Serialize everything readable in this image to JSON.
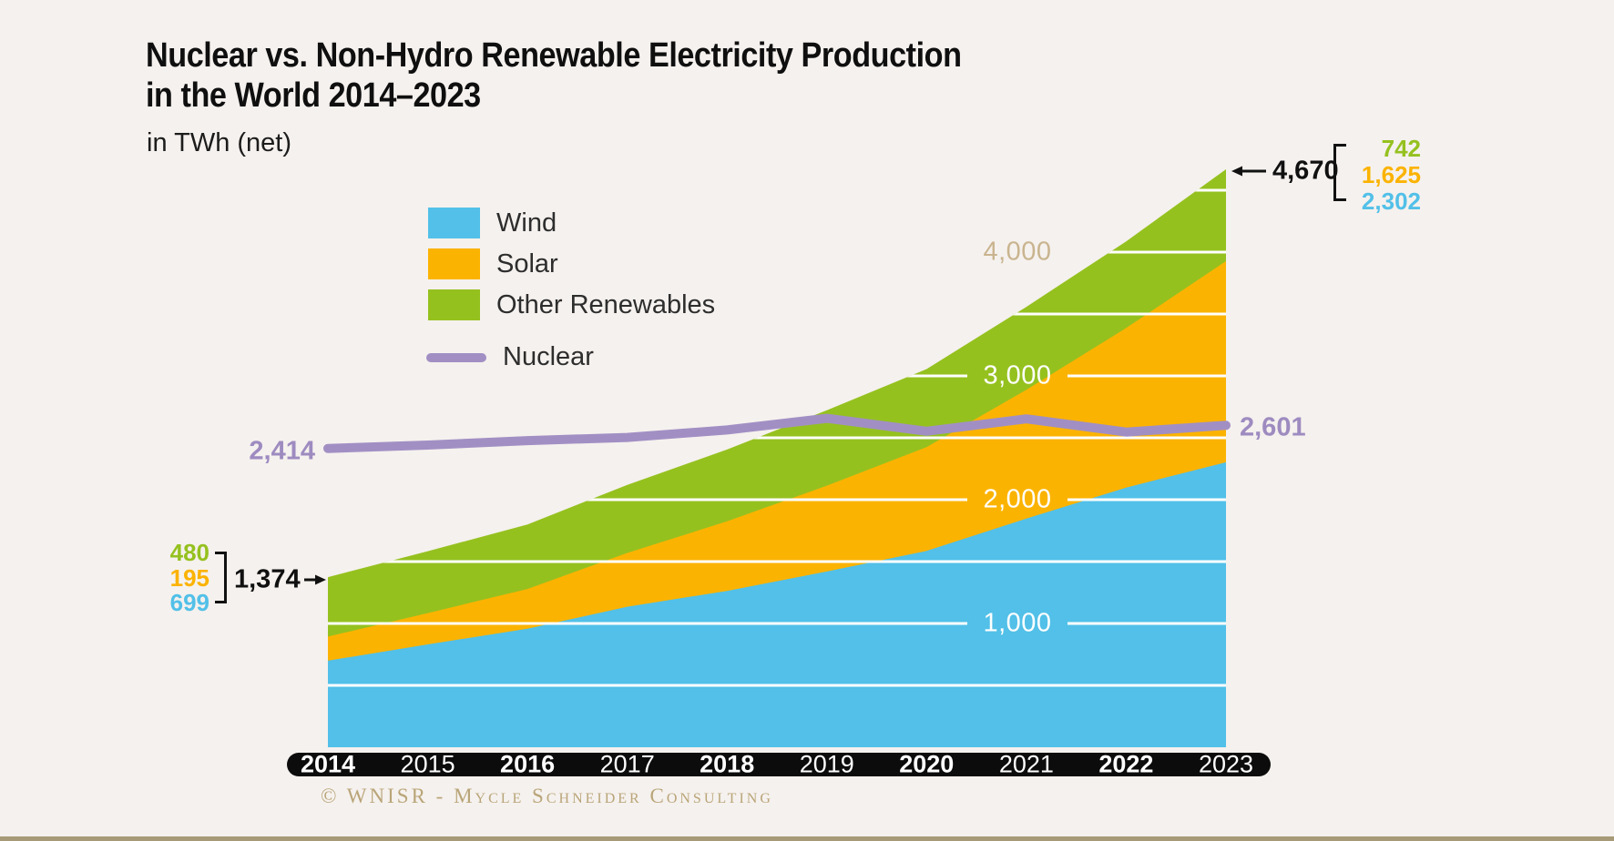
{
  "title": {
    "line1": "Nuclear vs. Non-Hydro Renewable Electricity Production",
    "line2": "in the World 2014–2023"
  },
  "subtitle": "in TWh (net)",
  "legend": {
    "items": [
      {
        "label": "Wind",
        "color": "#52c0e8",
        "swatch": "rect"
      },
      {
        "label": "Solar",
        "color": "#fbb301",
        "swatch": "rect"
      },
      {
        "label": "Other Renewables",
        "color": "#95c11f",
        "swatch": "rect"
      },
      {
        "label": "Nuclear",
        "color": "#a18fc4",
        "swatch": "line"
      }
    ]
  },
  "chart_data": {
    "type": "area",
    "title": "Nuclear vs. Non-Hydro Renewable Electricity Production in the World 2014–2023",
    "unit": "TWh (net)",
    "stacked": true,
    "grid": "on",
    "gridline_step": 500,
    "ylim": [
      0,
      4750
    ],
    "legend_position": "upper-left",
    "x": [
      2014,
      2015,
      2016,
      2017,
      2018,
      2019,
      2020,
      2021,
      2022,
      2023
    ],
    "x_axis_bold_years": [
      2014,
      2016,
      2018,
      2020,
      2022
    ],
    "series": [
      {
        "name": "Wind",
        "type": "area",
        "color": "#52c0e8",
        "values": [
          699,
          831,
          957,
          1135,
          1263,
          1420,
          1586,
          1848,
          2098,
          2302
        ]
      },
      {
        "name": "Solar",
        "type": "area",
        "color": "#fbb301",
        "values": [
          195,
          253,
          322,
          435,
          562,
          693,
          839,
          1040,
          1289,
          1625
        ]
      },
      {
        "name": "Other Renewables",
        "type": "area",
        "color": "#95c11f",
        "values": [
          480,
          500,
          520,
          550,
          580,
          610,
          630,
          670,
          700,
          742
        ]
      },
      {
        "name": "Nuclear",
        "type": "line",
        "color": "#a18fc4",
        "values": [
          2414,
          2441,
          2477,
          2503,
          2563,
          2657,
          2553,
          2653,
          2546,
          2601
        ]
      }
    ],
    "yticks": [
      {
        "value": 1000,
        "label": "1,000",
        "color": "#ffffff"
      },
      {
        "value": 2000,
        "label": "2,000",
        "color": "#ffffff"
      },
      {
        "value": 3000,
        "label": "3,000",
        "color": "#ffffff"
      },
      {
        "value": 4000,
        "label": "4,000",
        "color": "#c9b48f"
      }
    ]
  },
  "annotations": {
    "nuclear_start": "2,414",
    "nuclear_end": "2,601",
    "start_total": "1,374",
    "end_total": "4,670",
    "start_breakdown": [
      {
        "label": "480",
        "series": "Other Renewables",
        "color": "#95c11f"
      },
      {
        "label": "195",
        "series": "Solar",
        "color": "#fbb301"
      },
      {
        "label": "699",
        "series": "Wind",
        "color": "#52c0e8"
      }
    ],
    "end_breakdown": [
      {
        "label": "742",
        "series": "Other Renewables",
        "color": "#95c11f"
      },
      {
        "label": "1,625",
        "series": "Solar",
        "color": "#fbb301"
      },
      {
        "label": "2,302",
        "series": "Wind",
        "color": "#52c0e8"
      }
    ]
  },
  "footer": {
    "copyright": "© WNISR - Mycle Schneider Consulting"
  }
}
